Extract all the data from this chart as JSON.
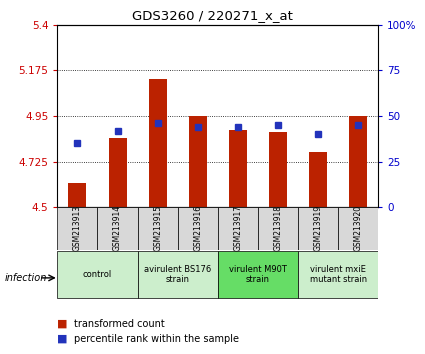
{
  "title": "GDS3260 / 220271_x_at",
  "samples": [
    "GSM213913",
    "GSM213914",
    "GSM213915",
    "GSM213916",
    "GSM213917",
    "GSM213918",
    "GSM213919",
    "GSM213920"
  ],
  "transformed_counts": [
    4.62,
    4.84,
    5.13,
    4.95,
    4.88,
    4.87,
    4.77,
    4.95
  ],
  "percentile_ranks": [
    35,
    42,
    46,
    44,
    44,
    45,
    40,
    45
  ],
  "ylim_left": [
    4.5,
    5.4
  ],
  "yticks_left": [
    4.5,
    4.725,
    4.95,
    5.175,
    5.4
  ],
  "ylim_right": [
    0,
    100
  ],
  "yticks_right": [
    0,
    25,
    50,
    75,
    100
  ],
  "bar_color": "#bb2200",
  "dot_color": "#2233bb",
  "groups": [
    {
      "label": "control",
      "samples": [
        0,
        1
      ],
      "color": "#cceecc"
    },
    {
      "label": "avirulent BS176\nstrain",
      "samples": [
        2,
        3
      ],
      "color": "#cceecc"
    },
    {
      "label": "virulent M90T\nstrain",
      "samples": [
        4,
        5
      ],
      "color": "#66dd66"
    },
    {
      "label": "virulent mxiE\nmutant strain",
      "samples": [
        6,
        7
      ],
      "color": "#cceecc"
    }
  ],
  "infection_label": "infection",
  "legend_bar_label": "transformed count",
  "legend_dot_label": "percentile rank within the sample",
  "bar_width": 0.45,
  "background_color": "#ffffff"
}
